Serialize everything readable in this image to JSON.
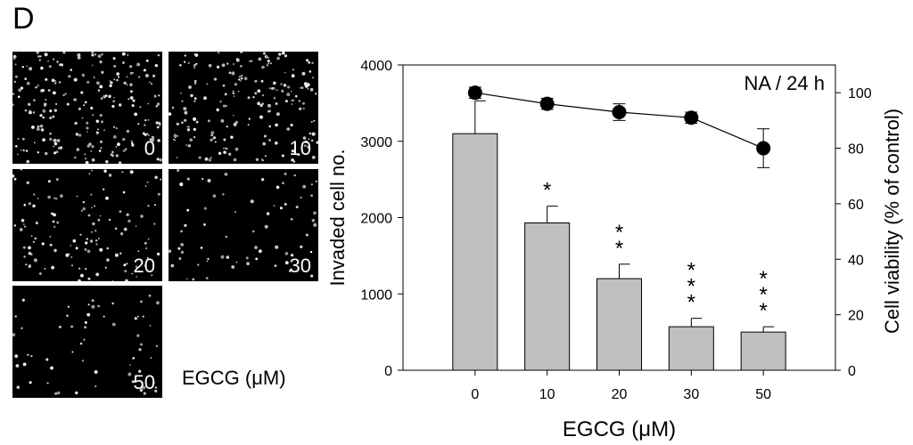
{
  "panel_label": "D",
  "micrographs": {
    "labels": [
      "0",
      "10",
      "20",
      "30",
      "50"
    ],
    "caption": "EGCG (μM)"
  },
  "chart_data": {
    "type": "bar",
    "annotation": "NA / 24 h",
    "categories": [
      "0",
      "10",
      "20",
      "30",
      "50"
    ],
    "xlabel": "EGCG (μM)",
    "ylabel": "Invaded cell no.",
    "y2label": "Cell viability (% of control)",
    "ylim": [
      0,
      4000
    ],
    "y2lim": [
      0,
      110
    ],
    "yticks": [
      "0",
      "1000",
      "2000",
      "3000",
      "4000"
    ],
    "y2ticks": [
      "0",
      "20",
      "40",
      "60",
      "80",
      "100"
    ],
    "series": [
      {
        "name": "Invaded cell no.",
        "kind": "bar",
        "axis": "left",
        "values": [
          3100,
          1930,
          1200,
          570,
          500
        ],
        "errors": [
          430,
          220,
          190,
          110,
          70
        ],
        "significance": [
          "",
          "*",
          "**",
          "***",
          "***"
        ]
      },
      {
        "name": "Cell viability (% of control)",
        "kind": "line",
        "axis": "right",
        "values": [
          100,
          96,
          93,
          91,
          80
        ],
        "errors": [
          2,
          2,
          3,
          2,
          7
        ]
      }
    ],
    "colors": {
      "bar_fill": "#c0c0c0",
      "line": "#000000"
    }
  }
}
